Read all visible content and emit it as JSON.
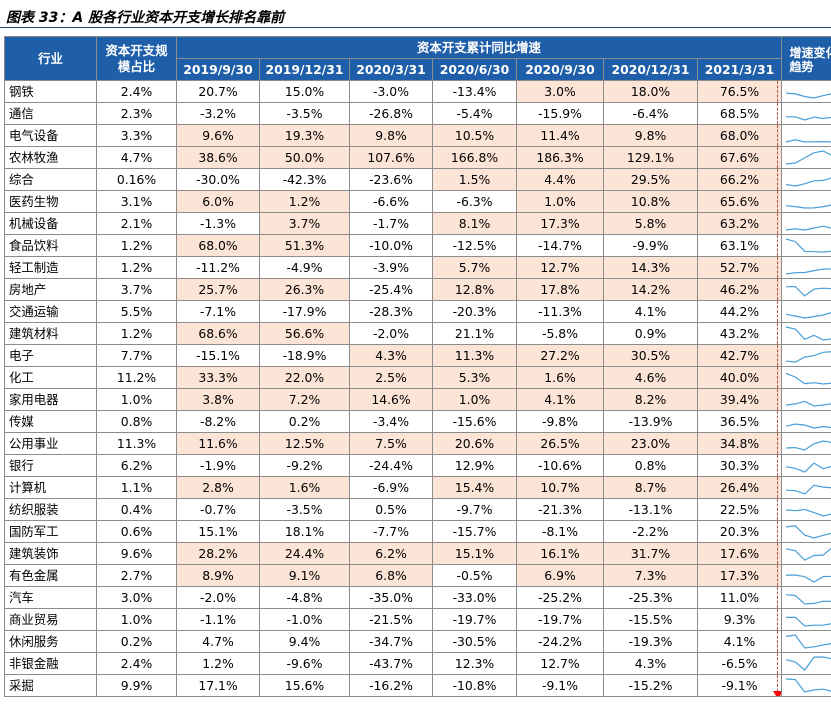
{
  "title": "图表 33：A 股各行业资本开支增长排名靠前",
  "chart_data": {
    "type": "table",
    "headers": {
      "industry": "行业",
      "share": "资本开支规模占比",
      "group": "资本开支累计同比增速",
      "trend": "增速变化趋势",
      "periods": [
        "2019/9/30",
        "2019/12/31",
        "2020/3/31",
        "2020/6/30",
        "2020/9/30",
        "2020/12/31",
        "2021/3/31"
      ]
    },
    "rows": [
      {
        "industry": "钢铁",
        "share": "2.4%",
        "values": [
          "20.7%",
          "15.0%",
          "-3.0%",
          "-13.4%",
          "3.0%",
          "18.0%",
          "76.5%"
        ],
        "hl": [
          0,
          0,
          0,
          0,
          1,
          1,
          1
        ]
      },
      {
        "industry": "通信",
        "share": "2.3%",
        "values": [
          "-3.2%",
          "-3.5%",
          "-26.8%",
          "-5.4%",
          "-15.9%",
          "-6.4%",
          "68.5%"
        ],
        "hl": [
          0,
          0,
          0,
          0,
          0,
          0,
          0
        ]
      },
      {
        "industry": "电气设备",
        "share": "3.3%",
        "values": [
          "9.6%",
          "19.3%",
          "9.8%",
          "10.5%",
          "11.4%",
          "9.8%",
          "68.0%"
        ],
        "hl": [
          1,
          1,
          1,
          1,
          1,
          1,
          1
        ]
      },
      {
        "industry": "农林牧渔",
        "share": "4.7%",
        "values": [
          "38.6%",
          "50.0%",
          "107.6%",
          "166.8%",
          "186.3%",
          "129.1%",
          "67.6%"
        ],
        "hl": [
          1,
          1,
          1,
          1,
          1,
          1,
          1
        ]
      },
      {
        "industry": "综合",
        "share": "0.16%",
        "values": [
          "-30.0%",
          "-42.3%",
          "-23.6%",
          "1.5%",
          "4.4%",
          "29.5%",
          "66.2%"
        ],
        "hl": [
          0,
          0,
          0,
          1,
          1,
          1,
          1
        ]
      },
      {
        "industry": "医药生物",
        "share": "3.1%",
        "values": [
          "6.0%",
          "1.2%",
          "-6.6%",
          "-6.3%",
          "1.0%",
          "10.8%",
          "65.6%"
        ],
        "hl": [
          1,
          1,
          0,
          0,
          1,
          1,
          1
        ]
      },
      {
        "industry": "机械设备",
        "share": "2.1%",
        "values": [
          "-1.3%",
          "3.7%",
          "-1.7%",
          "8.1%",
          "17.3%",
          "5.8%",
          "63.2%"
        ],
        "hl": [
          0,
          1,
          0,
          1,
          1,
          1,
          1
        ]
      },
      {
        "industry": "食品饮料",
        "share": "1.2%",
        "values": [
          "68.0%",
          "51.3%",
          "-10.0%",
          "-12.5%",
          "-14.7%",
          "-9.9%",
          "63.1%"
        ],
        "hl": [
          1,
          1,
          0,
          0,
          0,
          0,
          0
        ]
      },
      {
        "industry": "轻工制造",
        "share": "1.2%",
        "values": [
          "-11.2%",
          "-4.9%",
          "-3.9%",
          "5.7%",
          "12.7%",
          "14.3%",
          "52.7%"
        ],
        "hl": [
          0,
          0,
          0,
          1,
          1,
          1,
          1
        ]
      },
      {
        "industry": "房地产",
        "share": "3.7%",
        "values": [
          "25.7%",
          "26.3%",
          "-25.4%",
          "12.8%",
          "17.8%",
          "14.2%",
          "46.2%"
        ],
        "hl": [
          1,
          1,
          0,
          1,
          1,
          1,
          1
        ]
      },
      {
        "industry": "交通运输",
        "share": "5.5%",
        "values": [
          "-7.1%",
          "-17.9%",
          "-28.3%",
          "-20.3%",
          "-11.3%",
          "4.1%",
          "44.2%"
        ],
        "hl": [
          0,
          0,
          0,
          0,
          0,
          0,
          0
        ]
      },
      {
        "industry": "建筑材料",
        "share": "1.2%",
        "values": [
          "68.6%",
          "56.6%",
          "-2.0%",
          "21.1%",
          "-5.8%",
          "0.9%",
          "43.2%"
        ],
        "hl": [
          1,
          1,
          0,
          0,
          0,
          0,
          0
        ]
      },
      {
        "industry": "电子",
        "share": "7.7%",
        "values": [
          "-15.1%",
          "-18.9%",
          "4.3%",
          "11.3%",
          "27.2%",
          "30.5%",
          "42.7%"
        ],
        "hl": [
          0,
          0,
          1,
          1,
          1,
          1,
          1
        ]
      },
      {
        "industry": "化工",
        "share": "11.2%",
        "values": [
          "33.3%",
          "22.0%",
          "2.5%",
          "5.3%",
          "1.6%",
          "4.6%",
          "40.0%"
        ],
        "hl": [
          1,
          1,
          1,
          1,
          1,
          1,
          1
        ]
      },
      {
        "industry": "家用电器",
        "share": "1.0%",
        "values": [
          "3.8%",
          "7.2%",
          "14.6%",
          "1.0%",
          "4.1%",
          "8.2%",
          "39.4%"
        ],
        "hl": [
          1,
          1,
          1,
          1,
          1,
          1,
          1
        ]
      },
      {
        "industry": "传媒",
        "share": "0.8%",
        "values": [
          "-8.2%",
          "0.2%",
          "-3.4%",
          "-15.6%",
          "-9.8%",
          "-13.9%",
          "36.5%"
        ],
        "hl": [
          0,
          0,
          0,
          0,
          0,
          0,
          0
        ]
      },
      {
        "industry": "公用事业",
        "share": "11.3%",
        "values": [
          "11.6%",
          "12.5%",
          "7.5%",
          "20.6%",
          "26.5%",
          "23.0%",
          "34.8%"
        ],
        "hl": [
          1,
          1,
          1,
          1,
          1,
          1,
          1
        ]
      },
      {
        "industry": "银行",
        "share": "6.2%",
        "values": [
          "-1.9%",
          "-9.2%",
          "-24.4%",
          "12.9%",
          "-10.6%",
          "0.8%",
          "30.3%"
        ],
        "hl": [
          0,
          0,
          0,
          0,
          0,
          0,
          0
        ]
      },
      {
        "industry": "计算机",
        "share": "1.1%",
        "values": [
          "2.8%",
          "1.6%",
          "-6.9%",
          "15.4%",
          "10.7%",
          "8.7%",
          "26.4%"
        ],
        "hl": [
          1,
          1,
          0,
          1,
          1,
          1,
          1
        ]
      },
      {
        "industry": "纺织服装",
        "share": "0.4%",
        "values": [
          "-0.7%",
          "-3.5%",
          "0.5%",
          "-9.7%",
          "-21.3%",
          "-13.1%",
          "22.5%"
        ],
        "hl": [
          0,
          0,
          0,
          0,
          0,
          0,
          0
        ]
      },
      {
        "industry": "国防军工",
        "share": "0.6%",
        "values": [
          "15.1%",
          "18.1%",
          "-7.7%",
          "-15.7%",
          "-8.1%",
          "-2.2%",
          "20.3%"
        ],
        "hl": [
          0,
          0,
          0,
          0,
          0,
          0,
          0
        ]
      },
      {
        "industry": "建筑装饰",
        "share": "9.6%",
        "values": [
          "28.2%",
          "24.4%",
          "6.2%",
          "15.1%",
          "16.1%",
          "31.7%",
          "17.6%"
        ],
        "hl": [
          1,
          1,
          1,
          1,
          1,
          1,
          1
        ]
      },
      {
        "industry": "有色金属",
        "share": "2.7%",
        "values": [
          "8.9%",
          "9.1%",
          "6.8%",
          "-0.5%",
          "6.9%",
          "7.3%",
          "17.3%"
        ],
        "hl": [
          1,
          1,
          1,
          0,
          1,
          1,
          1
        ]
      },
      {
        "industry": "汽车",
        "share": "3.0%",
        "values": [
          "-2.0%",
          "-4.8%",
          "-35.0%",
          "-33.0%",
          "-25.2%",
          "-25.3%",
          "11.0%"
        ],
        "hl": [
          0,
          0,
          0,
          0,
          0,
          0,
          0
        ]
      },
      {
        "industry": "商业贸易",
        "share": "1.0%",
        "values": [
          "-1.1%",
          "-1.0%",
          "-21.5%",
          "-19.7%",
          "-19.7%",
          "-15.5%",
          "9.3%"
        ],
        "hl": [
          0,
          0,
          0,
          0,
          0,
          0,
          0
        ]
      },
      {
        "industry": "休闲服务",
        "share": "0.2%",
        "values": [
          "4.7%",
          "9.4%",
          "-34.7%",
          "-30.5%",
          "-24.2%",
          "-19.3%",
          "4.1%"
        ],
        "hl": [
          0,
          0,
          0,
          0,
          0,
          0,
          0
        ]
      },
      {
        "industry": "非银金融",
        "share": "2.4%",
        "values": [
          "1.2%",
          "-9.6%",
          "-43.7%",
          "12.3%",
          "12.7%",
          "4.3%",
          "-6.5%"
        ],
        "hl": [
          0,
          0,
          0,
          0,
          0,
          0,
          0
        ]
      },
      {
        "industry": "采掘",
        "share": "9.9%",
        "values": [
          "17.1%",
          "15.6%",
          "-16.2%",
          "-10.8%",
          "-9.1%",
          "-15.2%",
          "-9.1%"
        ],
        "hl": [
          0,
          0,
          0,
          0,
          0,
          0,
          0
        ]
      }
    ],
    "colors": {
      "header": "#1f5ea8",
      "highlight": "#fce4d6",
      "sparkline": "#4a9fd8",
      "marker": "#ff0000"
    }
  }
}
